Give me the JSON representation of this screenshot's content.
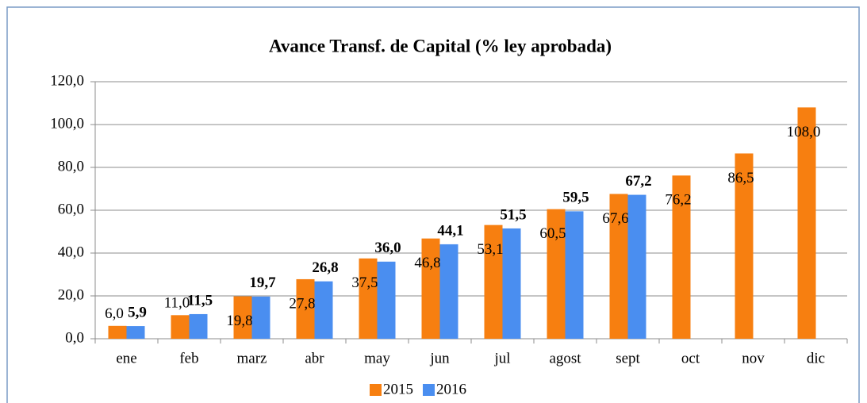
{
  "chart_data": {
    "type": "bar",
    "title": "Avance Transf. de Capital (% ley aprobada)",
    "categories": [
      "ene",
      "feb",
      "marz",
      "abr",
      "may",
      "jun",
      "jul",
      "agost",
      "sept",
      "oct",
      "nov",
      "dic"
    ],
    "series": [
      {
        "name": "2015",
        "color": "#f77f10",
        "values": [
          6.0,
          11.0,
          19.8,
          27.8,
          37.5,
          46.8,
          53.1,
          60.5,
          67.6,
          76.2,
          86.5,
          108.0
        ],
        "value_labels": [
          "6,0",
          "11,0",
          "19,8",
          "27,8",
          "37,5",
          "46,8",
          "53,1",
          "60,5",
          "67,6",
          "76,2",
          "86,5",
          "108,0"
        ]
      },
      {
        "name": "2016",
        "color": "#4a8ef0",
        "values": [
          5.9,
          11.5,
          19.7,
          26.8,
          36.0,
          44.1,
          51.5,
          59.5,
          67.2,
          null,
          null,
          null
        ],
        "value_labels": [
          "5,9",
          "11,5",
          "19,7",
          "26,8",
          "36,0",
          "44,1",
          "51,5",
          "59,5",
          "67,2",
          null,
          null,
          null
        ]
      }
    ],
    "ylim": [
      0,
      120
    ],
    "yticks": [
      {
        "value": 0,
        "label": "0,0"
      },
      {
        "value": 20,
        "label": "20,0"
      },
      {
        "value": 40,
        "label": "40,0"
      },
      {
        "value": 60,
        "label": "60,0"
      },
      {
        "value": 80,
        "label": "80,0"
      },
      {
        "value": 100,
        "label": "100,0"
      },
      {
        "value": 120,
        "label": "120,0"
      }
    ],
    "grid": true,
    "legend": "bottom"
  }
}
